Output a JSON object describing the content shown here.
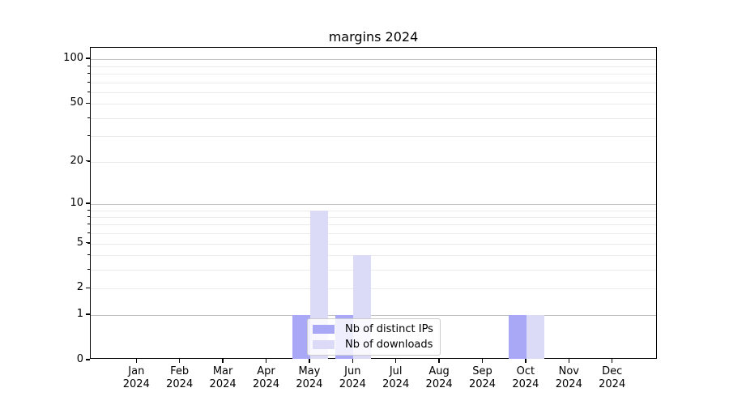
{
  "title": "margins 2024",
  "chart_data": {
    "type": "bar",
    "title": "margins 2024",
    "categories": [
      "Jan",
      "Feb",
      "Mar",
      "Apr",
      "May",
      "Jun",
      "Jul",
      "Aug",
      "Sep",
      "Oct",
      "Nov",
      "Dec"
    ],
    "x_axis": {
      "unit": "month",
      "year": "2024"
    },
    "series": [
      {
        "name": "Nb of distinct IPs",
        "color": "#a8a8f7",
        "values": [
          0,
          0,
          0,
          0,
          1,
          1,
          0,
          0,
          0,
          1,
          0,
          0
        ]
      },
      {
        "name": "Nb of downloads",
        "color": "#dbdbf8",
        "values": [
          0,
          0,
          0,
          0,
          9,
          4,
          0,
          0,
          0,
          1,
          0,
          0
        ]
      }
    ],
    "y_axis": {
      "scale": "log1p",
      "tick_labels": [
        0,
        1,
        2,
        5,
        10,
        20,
        50,
        100
      ],
      "major_gridlines": [
        1,
        10,
        100
      ],
      "minor_gridlines": [
        2,
        3,
        4,
        5,
        6,
        7,
        8,
        9,
        20,
        30,
        40,
        50,
        60,
        70,
        80,
        90
      ],
      "range": [
        0,
        120
      ]
    },
    "grid": "horizontal",
    "legend_location": "lower center, inside plot",
    "style": {
      "major_grid_color": "#c3c3c3",
      "minor_grid_color": "#ebebeb",
      "axis_color": "#000000",
      "text_color": "#000000",
      "background": "#ffffff"
    }
  }
}
